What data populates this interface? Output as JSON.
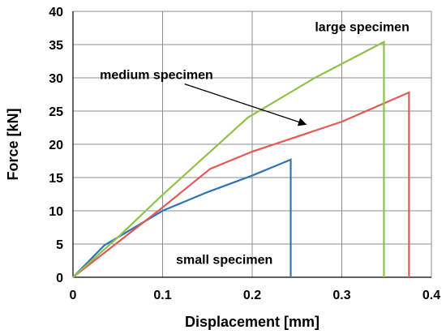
{
  "chart_data": {
    "type": "line",
    "xlabel": "Displacement [mm]",
    "ylabel": "Force [kN]",
    "xlim": [
      0,
      0.4
    ],
    "ylim": [
      0,
      40
    ],
    "xticks": [
      0,
      0.1,
      0.2,
      0.3,
      0.4
    ],
    "xtick_labels": [
      "0",
      "0.1",
      "0.2",
      "0.3",
      "0.4"
    ],
    "yticks": [
      0,
      5,
      10,
      15,
      20,
      25,
      30,
      35,
      40
    ],
    "ytick_labels": [
      "0",
      "5",
      "10",
      "15",
      "20",
      "25",
      "30",
      "35",
      "40"
    ],
    "grid": true,
    "legend": "none",
    "series": [
      {
        "name": "small specimen",
        "color": "#2e75b6",
        "x": [
          0,
          0.035,
          0.1,
          0.15,
          0.2,
          0.243,
          0.243
        ],
        "y": [
          0,
          4.8,
          10.0,
          12.8,
          15.3,
          17.7,
          0
        ]
      },
      {
        "name": "medium specimen",
        "color": "#e05a56",
        "x": [
          0,
          0.1,
          0.153,
          0.2,
          0.3,
          0.375,
          0.375
        ],
        "y": [
          0,
          10.5,
          16.3,
          18.9,
          23.4,
          27.8,
          0
        ]
      },
      {
        "name": "large specimen",
        "color": "#8fc24a",
        "x": [
          0,
          0.05,
          0.1,
          0.195,
          0.27,
          0.347,
          0.347
        ],
        "y": [
          0,
          6.0,
          12.4,
          24.0,
          30.0,
          35.4,
          0
        ]
      }
    ],
    "annotations": [
      {
        "text": "large specimen",
        "x": 0.27,
        "y": 37.0
      },
      {
        "text": "medium specimen",
        "x": 0.03,
        "y": 29.8,
        "arrow_to": [
          0.26,
          23.0
        ]
      },
      {
        "text": "small specimen",
        "x": 0.115,
        "y": 2.0
      }
    ]
  }
}
